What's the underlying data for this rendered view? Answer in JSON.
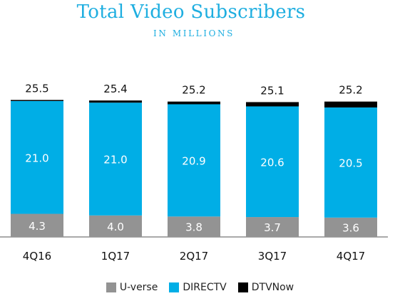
{
  "title": "Total Video Subscribers",
  "subtitle": "IN MILLIONS",
  "colors": {
    "uverse": "#939393",
    "directv": "#00aee6",
    "dtvnow": "#000000",
    "title": "#1eaee0"
  },
  "chart_data": {
    "type": "bar",
    "stacked": true,
    "categories": [
      "4Q16",
      "1Q17",
      "2Q17",
      "3Q17",
      "4Q17"
    ],
    "series": [
      {
        "name": "U-verse",
        "values": [
          4.3,
          4.0,
          3.8,
          3.7,
          3.6
        ]
      },
      {
        "name": "DIRECTV",
        "values": [
          21.0,
          21.0,
          20.9,
          20.6,
          20.5
        ]
      },
      {
        "name": "DTVNow",
        "values": [
          0.2,
          0.4,
          0.5,
          0.8,
          1.1
        ]
      }
    ],
    "totals": [
      "25.5",
      "25.4",
      "25.2",
      "25.1",
      "25.2"
    ],
    "segment_labels": {
      "U-verse": [
        "4.3",
        "4.0",
        "3.8",
        "3.7",
        "3.6"
      ],
      "DIRECTV": [
        "21.0",
        "21.0",
        "20.9",
        "20.6",
        "20.5"
      ]
    },
    "legend": [
      "U-verse",
      "DIRECTV",
      "DTVNow"
    ],
    "legend_position": "bottom",
    "grid": false
  }
}
